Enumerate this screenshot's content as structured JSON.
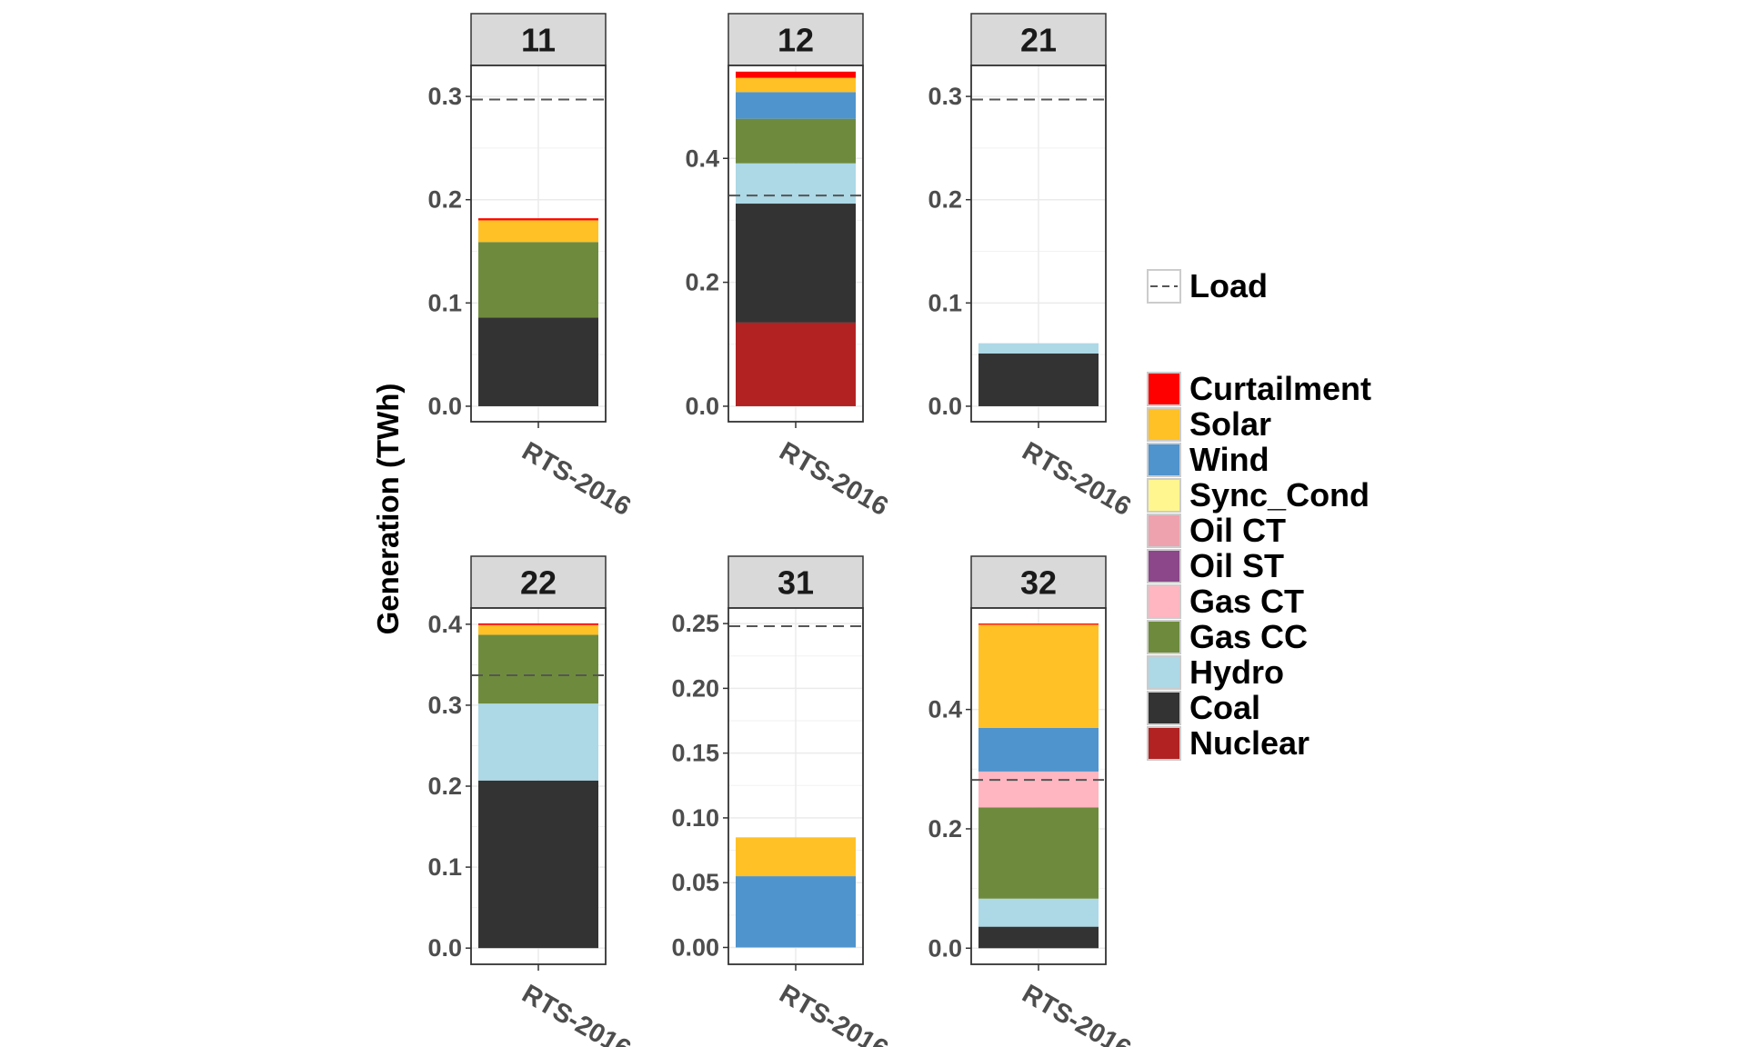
{
  "chart_data": {
    "type": "bar",
    "layout": "faceted-stacked",
    "ylabel": "Generation (TWh)",
    "xlabel": "",
    "grid": true,
    "legend_placement": "right",
    "load_label": "Load",
    "stack_order_bottom_to_top": [
      "Nuclear",
      "Coal",
      "Hydro",
      "Gas CC",
      "Gas CT",
      "Oil ST",
      "Oil CT",
      "Sync_Cond",
      "Wind",
      "Solar",
      "Curtailment"
    ],
    "legend": [
      {
        "name": "Curtailment",
        "color": "#ff0000"
      },
      {
        "name": "Solar",
        "color": "#ffc125"
      },
      {
        "name": "Wind",
        "color": "#4f94cd"
      },
      {
        "name": "Sync_Cond",
        "color": "#fff68f"
      },
      {
        "name": "Oil CT",
        "color": "#eea2ad"
      },
      {
        "name": "Oil ST",
        "color": "#8b4789"
      },
      {
        "name": "Gas CT",
        "color": "#ffb6c1"
      },
      {
        "name": "Gas CC",
        "color": "#6e8b3d"
      },
      {
        "name": "Hydro",
        "color": "#add8e6"
      },
      {
        "name": "Coal",
        "color": "#333333"
      },
      {
        "name": "Nuclear",
        "color": "#b22222"
      }
    ],
    "facets": [
      {
        "title": "11",
        "category": "RTS-2016",
        "ylim": [
          -0.015,
          0.33
        ],
        "yticks": [
          0.0,
          0.1,
          0.2,
          0.3
        ],
        "tick_labels": [
          "0.0",
          "0.1",
          "0.2",
          "0.3"
        ],
        "load": 0.297,
        "values": {
          "Coal": 0.086,
          "Gas CC": 0.073,
          "Solar": 0.021,
          "Curtailment": 0.002
        }
      },
      {
        "title": "12",
        "category": "RTS-2016",
        "ylim": [
          -0.025,
          0.55
        ],
        "yticks": [
          0.0,
          0.2,
          0.4
        ],
        "tick_labels": [
          "0.0",
          "0.2",
          "0.4"
        ],
        "load": 0.34,
        "values": {
          "Nuclear": 0.135,
          "Coal": 0.192,
          "Hydro": 0.065,
          "Gas CC": 0.072,
          "Wind": 0.043,
          "Solar": 0.023,
          "Curtailment": 0.01
        }
      },
      {
        "title": "21",
        "category": "RTS-2016",
        "ylim": [
          -0.015,
          0.33
        ],
        "yticks": [
          0.0,
          0.1,
          0.2,
          0.3
        ],
        "tick_labels": [
          "0.0",
          "0.1",
          "0.2",
          "0.3"
        ],
        "load": 0.297,
        "values": {
          "Coal": 0.051,
          "Hydro": 0.01
        }
      },
      {
        "title": "22",
        "category": "RTS-2016",
        "ylim": [
          -0.02,
          0.42
        ],
        "yticks": [
          0.0,
          0.1,
          0.2,
          0.3,
          0.4
        ],
        "tick_labels": [
          "0.0",
          "0.1",
          "0.2",
          "0.3",
          "0.4"
        ],
        "load": 0.337,
        "values": {
          "Coal": 0.207,
          "Hydro": 0.095,
          "Gas CC": 0.085,
          "Solar": 0.012,
          "Curtailment": 0.002
        }
      },
      {
        "title": "31",
        "category": "RTS-2016",
        "ylim": [
          -0.013,
          0.262
        ],
        "yticks": [
          0.0,
          0.05,
          0.1,
          0.15,
          0.2,
          0.25
        ],
        "tick_labels": [
          "0.00",
          "0.05",
          "0.10",
          "0.15",
          "0.20",
          "0.25"
        ],
        "load": 0.248,
        "values": {
          "Wind": 0.055,
          "Solar": 0.03
        }
      },
      {
        "title": "32",
        "category": "RTS-2016",
        "ylim": [
          -0.027,
          0.57
        ],
        "yticks": [
          0.0,
          0.2,
          0.4
        ],
        "tick_labels": [
          "0.0",
          "0.2",
          "0.4"
        ],
        "load": 0.282,
        "values": {
          "Coal": 0.036,
          "Hydro": 0.047,
          "Gas CC": 0.153,
          "Gas CT": 0.06,
          "Wind": 0.073,
          "Solar": 0.173,
          "Curtailment": 0.002
        }
      }
    ]
  }
}
